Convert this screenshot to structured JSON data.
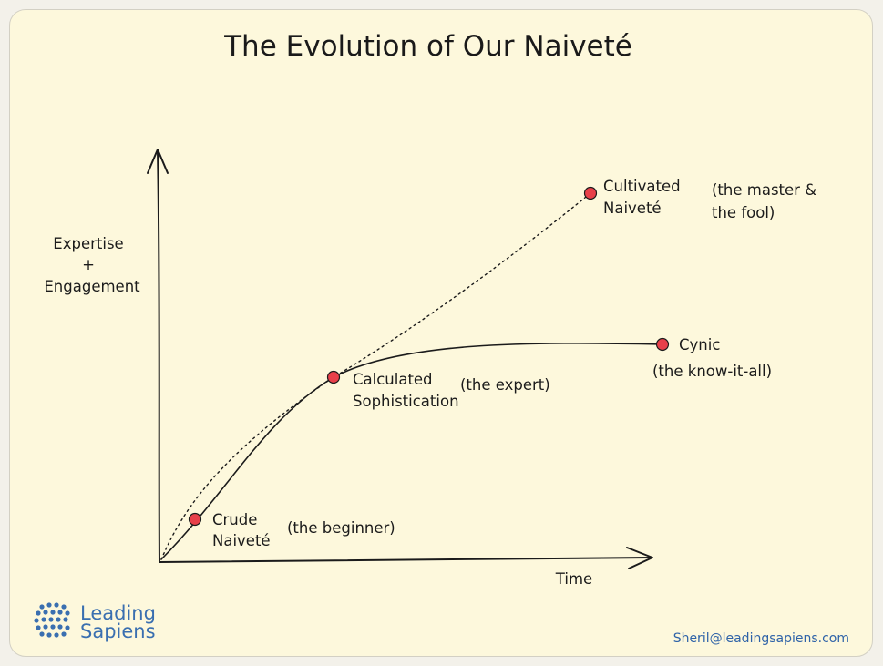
{
  "title": "The Evolution of Our Naiveté",
  "axes": {
    "y_label_lines": [
      "Expertise",
      "+",
      "Engagement"
    ],
    "x_label": "Time"
  },
  "stages": {
    "crude": {
      "name_lines": [
        "Crude",
        "Naiveté"
      ],
      "descriptor": "(the beginner)"
    },
    "calculated": {
      "name_lines": [
        "Calculated",
        "Sophistication"
      ],
      "descriptor": "(the expert)"
    },
    "cynic": {
      "name_lines": [
        "Cynic"
      ],
      "descriptor": "(the know-it-all)"
    },
    "cultivated": {
      "name_lines": [
        "Cultivated",
        "Naiveté"
      ],
      "descriptor_lines": [
        "(the master &",
        "the fool)"
      ]
    }
  },
  "curves": {
    "solid_path": "plateau path ending at Cynic",
    "dotted_path": "continuing path ending at Cultivated Naiveté"
  },
  "brand": {
    "name_lines": [
      "Leading",
      "Sapiens"
    ],
    "logo_icon": "dot-grid-logo-icon",
    "color": "#3a6fb0"
  },
  "contact_email": "Sheril@leadingsapiens.com",
  "colors": {
    "background": "#fdf8dc",
    "marker": "#e8404a",
    "ink": "#1b1b1b"
  }
}
